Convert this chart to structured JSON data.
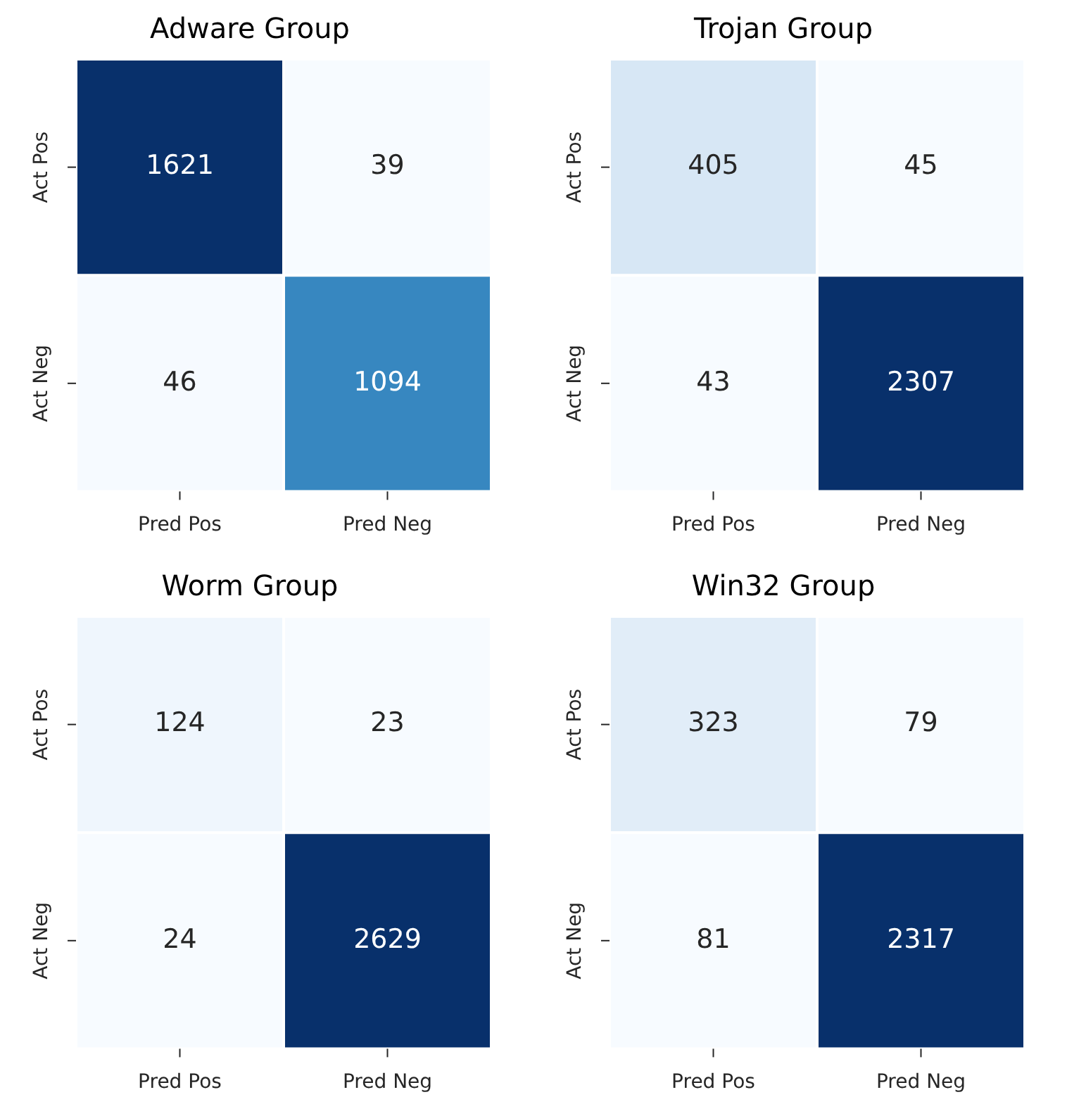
{
  "chart_data": [
    {
      "type": "heatmap",
      "title": "Adware Group",
      "categories": [
        "Pred Pos",
        "Pred Neg"
      ],
      "y_categories": [
        "Act Pos",
        "Act Neg"
      ],
      "cells": [
        [
          1621,
          39
        ],
        [
          46,
          1094
        ]
      ],
      "data_labels": true
    },
    {
      "type": "heatmap",
      "title": "Trojan Group",
      "categories": [
        "Pred Pos",
        "Pred Neg"
      ],
      "y_categories": [
        "Act Pos",
        "Act Neg"
      ],
      "cells": [
        [
          405,
          45
        ],
        [
          43,
          2307
        ]
      ],
      "data_labels": true
    },
    {
      "type": "heatmap",
      "title": "Worm Group",
      "categories": [
        "Pred Pos",
        "Pred Neg"
      ],
      "y_categories": [
        "Act Pos",
        "Act Neg"
      ],
      "cells": [
        [
          124,
          23
        ],
        [
          24,
          2629
        ]
      ],
      "data_labels": true
    },
    {
      "type": "heatmap",
      "title": "Win32 Group",
      "categories": [
        "Pred Pos",
        "Pred Neg"
      ],
      "y_categories": [
        "Act Pos",
        "Act Neg"
      ],
      "cells": [
        [
          323,
          79
        ],
        [
          81,
          2317
        ]
      ],
      "data_labels": true
    }
  ]
}
